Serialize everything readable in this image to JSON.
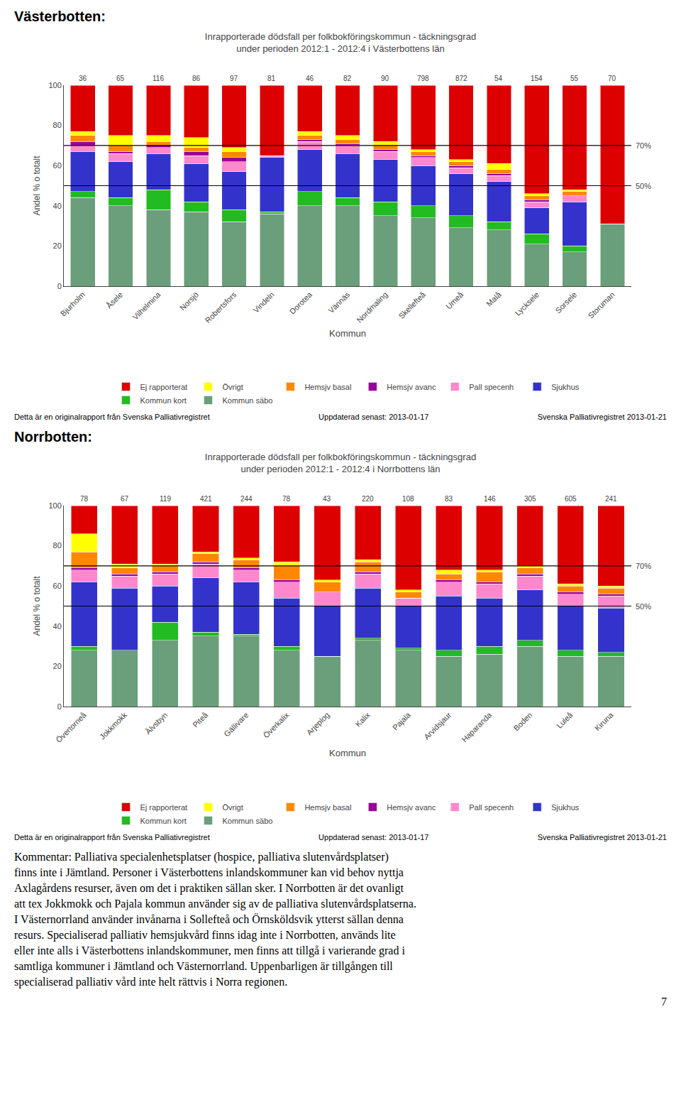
{
  "chart_data": [
    {
      "type": "bar",
      "stacked": true,
      "grid": false,
      "legend": "bottom",
      "section_label": "Västerbotten:",
      "title": "Inrapporterade dödsfall per folkbokföringskommun - täckningsgrad",
      "subtitle": "under perioden 2012:1 - 2012:4 i Västerbottens län",
      "y_label": "Andel % o totalt",
      "x_label": "Kommun",
      "categories": [
        "Bjurholm",
        "Åsele",
        "Vilhelmina",
        "Norsjö",
        "Robertsfors",
        "Vindeln",
        "Dorotea",
        "Vännäs",
        "Nordmaling",
        "Skellefteå",
        "Umeå",
        "Malå",
        "Lycksele",
        "Sorsele",
        "Storuman"
      ],
      "counts": [
        36,
        65,
        116,
        86,
        97,
        81,
        46,
        82,
        90,
        798,
        872,
        54,
        154,
        55,
        70
      ],
      "series": [
        {
          "name": "Kommun säbo",
          "color": "#6B9E7A",
          "values": [
            44,
            40,
            38,
            37,
            32,
            36,
            40,
            40,
            35,
            34,
            29,
            28,
            21,
            17,
            31
          ]
        },
        {
          "name": "Kommun kort",
          "color": "#22BB22",
          "values": [
            3,
            4,
            10,
            5,
            6,
            1,
            7,
            4,
            7,
            6,
            6,
            4,
            5,
            3,
            0
          ]
        },
        {
          "name": "Sjukhus",
          "color": "#3333CC",
          "values": [
            20,
            18,
            18,
            19,
            19,
            27,
            21,
            22,
            21,
            20,
            21,
            20,
            13,
            22,
            0
          ]
        },
        {
          "name": "Pall specenh",
          "color": "#FF88CC",
          "values": [
            3,
            4,
            3,
            4,
            5,
            1,
            4,
            4,
            4,
            4,
            3,
            3,
            3,
            3,
            0
          ]
        },
        {
          "name": "Hemsjv avanc",
          "color": "#990099",
          "values": [
            2,
            1,
            1,
            2,
            2,
            0,
            1,
            1,
            1,
            1,
            1,
            1,
            1,
            0,
            0
          ]
        },
        {
          "name": "Hemsjv basal",
          "color": "#FF8800",
          "values": [
            3,
            3,
            2,
            2,
            3,
            0,
            2,
            2,
            2,
            2,
            2,
            2,
            2,
            2,
            0
          ]
        },
        {
          "name": "Övrigt",
          "color": "#FFFF00",
          "values": [
            2,
            5,
            3,
            5,
            2,
            0,
            2,
            2,
            2,
            1,
            1,
            3,
            1,
            1,
            0
          ]
        },
        {
          "name": "Ej rapporterat",
          "color": "#DD0000",
          "values": [
            23,
            25,
            25,
            26,
            31,
            35,
            23,
            25,
            28,
            32,
            37,
            39,
            54,
            52,
            69
          ]
        }
      ],
      "reference_lines": [
        {
          "value": 70,
          "label": "70%"
        },
        {
          "value": 50,
          "label": "50%"
        }
      ],
      "ylim": [
        0,
        100
      ],
      "yticks": [
        0,
        20,
        40,
        60,
        80,
        100
      ],
      "footer": [
        "Detta är en originalrapport från Svenska Palliativregistret",
        "Uppdaterad senast: 2013-01-17",
        "Svenska Palliativregistret 2013-01-21"
      ]
    },
    {
      "type": "bar",
      "stacked": true,
      "grid": false,
      "legend": "bottom",
      "section_label": "Norrbotten:",
      "title": "Inrapporterade dödsfall per folkbokföringskommun - täckningsgrad",
      "subtitle": "under perioden 2012:1 - 2012:4 i Norrbottens län",
      "y_label": "Andel % o totalt",
      "x_label": "Kommun",
      "categories": [
        "Övertorneå",
        "Jokkmokk",
        "Älvsbyn",
        "Piteå",
        "Gällivare",
        "Överkalix",
        "Arjeplog",
        "Kalix",
        "Pajala",
        "Arvidsjaur",
        "Haparanda",
        "Boden",
        "Luleå",
        "Kiruna"
      ],
      "counts": [
        78,
        67,
        119,
        421,
        244,
        78,
        43,
        220,
        108,
        83,
        146,
        305,
        605,
        241
      ],
      "series": [
        {
          "name": "Kommun säbo",
          "color": "#6B9E7A",
          "values": [
            28,
            28,
            33,
            35,
            35,
            28,
            25,
            33,
            28,
            25,
            26,
            30,
            25,
            25
          ]
        },
        {
          "name": "Kommun kort",
          "color": "#22BB22",
          "values": [
            2,
            0,
            9,
            2,
            1,
            2,
            0,
            1,
            1,
            3,
            4,
            3,
            3,
            2
          ]
        },
        {
          "name": "Sjukhus",
          "color": "#3333CC",
          "values": [
            32,
            31,
            18,
            27,
            26,
            24,
            25,
            25,
            21,
            27,
            24,
            25,
            22,
            22
          ]
        },
        {
          "name": "Pall specenh",
          "color": "#FF88CC",
          "values": [
            6,
            6,
            6,
            7,
            6,
            8,
            7,
            7,
            4,
            7,
            7,
            7,
            6,
            6
          ]
        },
        {
          "name": "Hemsjv avanc",
          "color": "#990099",
          "values": [
            1,
            1,
            1,
            1,
            1,
            1,
            0,
            1,
            0,
            1,
            1,
            1,
            1,
            1
          ]
        },
        {
          "name": "Hemsjv basal",
          "color": "#FF8800",
          "values": [
            8,
            3,
            3,
            4,
            4,
            7,
            5,
            5,
            3,
            3,
            5,
            3,
            3,
            3
          ]
        },
        {
          "name": "Övrigt",
          "color": "#FFFF00",
          "values": [
            9,
            2,
            1,
            1,
            1,
            2,
            1,
            1,
            1,
            2,
            1,
            1,
            1,
            1
          ]
        },
        {
          "name": "Ej rapporterat",
          "color": "#DD0000",
          "values": [
            14,
            29,
            29,
            23,
            26,
            28,
            37,
            27,
            42,
            32,
            32,
            30,
            39,
            40
          ]
        }
      ],
      "reference_lines": [
        {
          "value": 70,
          "label": "70%"
        },
        {
          "value": 50,
          "label": "50%"
        }
      ],
      "ylim": [
        0,
        100
      ],
      "yticks": [
        0,
        20,
        40,
        60,
        80,
        100
      ],
      "footer": [
        "Detta är en originalrapport från Svenska Palliativregistret",
        "Uppdaterad senast: 2013-01-17",
        "Svenska Palliativregistret 2013-01-21"
      ]
    }
  ],
  "commentary": [
    "Kommentar: Palliativa specialenhetsplatser (hospice, palliativa slutenvårdsplatser)",
    "finns inte i Jämtland. Personer i Västerbottens inlandskommuner kan vid behov nyttja",
    "Axlagårdens resurser, även om det i praktiken sällan sker. I Norrbotten är det ovanligt",
    "att tex Jokkmokk och Pajala kommun använder sig av de palliativa slutenvårdsplatserna.",
    "I Västernorrland använder invånarna i Sollefteå och Örnsköldsvik ytterst sällan denna",
    "resurs. Specialiserad palliativ hemsjukvård finns idag inte i Norrbotten, används lite",
    "eller inte alls i Västerbottens inlandskommuner, men finns att tillgå i varierande grad i",
    "samtliga kommuner i Jämtland och Västernorrland. Uppenbarligen är tillgången till",
    "specialiserad palliativ vård inte helt rättvis i Norra regionen."
  ],
  "page_number": "7"
}
